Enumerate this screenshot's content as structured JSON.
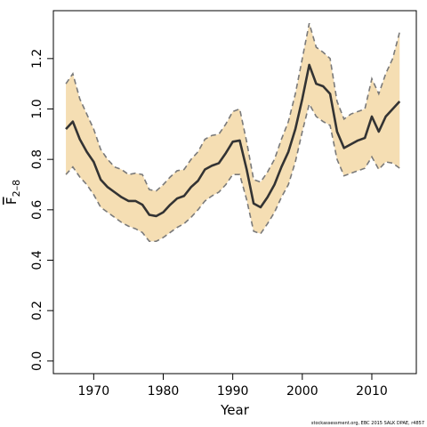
{
  "chart_data": {
    "type": "line",
    "title": "",
    "xlabel": "Year",
    "ylabel_main": "F",
    "ylabel_sub": "2–8",
    "xlim": [
      1964.2,
      2016.4
    ],
    "ylim": [
      -0.05,
      1.39
    ],
    "x_ticks": [
      1970,
      1980,
      1990,
      2000,
      2010
    ],
    "y_ticks": [
      0.0,
      0.2,
      0.4,
      0.6,
      0.8,
      1.0,
      1.2
    ],
    "band_color": "#f5deb3",
    "line_color": "#333333",
    "bound_color": "#7a7a7a",
    "x": [
      1966,
      1967,
      1968,
      1969,
      1970,
      1971,
      1972,
      1973,
      1974,
      1975,
      1976,
      1977,
      1978,
      1979,
      1980,
      1981,
      1982,
      1983,
      1984,
      1985,
      1986,
      1987,
      1988,
      1989,
      1990,
      1991,
      1992,
      1993,
      1994,
      1995,
      1996,
      1997,
      1998,
      1999,
      2000,
      2001,
      2002,
      2003,
      2004,
      2005,
      2006,
      2007,
      2008,
      2009,
      2010,
      2011,
      2012,
      2013,
      2014
    ],
    "series": [
      {
        "role": "estimate",
        "values": [
          0.92,
          0.95,
          0.88,
          0.83,
          0.79,
          0.72,
          0.69,
          0.67,
          0.65,
          0.635,
          0.635,
          0.62,
          0.58,
          0.575,
          0.59,
          0.62,
          0.645,
          0.655,
          0.69,
          0.715,
          0.76,
          0.775,
          0.785,
          0.825,
          0.87,
          0.875,
          0.76,
          0.625,
          0.61,
          0.65,
          0.7,
          0.77,
          0.83,
          0.92,
          1.04,
          1.175,
          1.1,
          1.09,
          1.06,
          0.91,
          0.845,
          0.86,
          0.875,
          0.885,
          0.97,
          0.91,
          0.97,
          1.0,
          1.03
        ]
      },
      {
        "role": "upper",
        "values": [
          1.1,
          1.14,
          1.04,
          0.98,
          0.92,
          0.84,
          0.8,
          0.77,
          0.76,
          0.74,
          0.745,
          0.74,
          0.68,
          0.675,
          0.7,
          0.73,
          0.755,
          0.76,
          0.8,
          0.83,
          0.88,
          0.895,
          0.9,
          0.94,
          0.99,
          1.0,
          0.87,
          0.72,
          0.71,
          0.75,
          0.8,
          0.88,
          0.95,
          1.06,
          1.2,
          1.34,
          1.245,
          1.225,
          1.2,
          1.03,
          0.96,
          0.98,
          0.99,
          1.0,
          1.12,
          1.06,
          1.14,
          1.2,
          1.305
        ]
      },
      {
        "role": "lower",
        "values": [
          0.74,
          0.77,
          0.73,
          0.7,
          0.66,
          0.61,
          0.59,
          0.57,
          0.55,
          0.535,
          0.525,
          0.51,
          0.475,
          0.475,
          0.49,
          0.51,
          0.53,
          0.545,
          0.57,
          0.6,
          0.635,
          0.655,
          0.67,
          0.7,
          0.74,
          0.74,
          0.64,
          0.515,
          0.505,
          0.545,
          0.59,
          0.65,
          0.7,
          0.79,
          0.91,
          1.02,
          0.97,
          0.95,
          0.935,
          0.8,
          0.735,
          0.745,
          0.755,
          0.765,
          0.81,
          0.76,
          0.79,
          0.785,
          0.765
        ]
      }
    ]
  },
  "footer_text": "stockassessment.org, EBC 2015 SALK DPAE, r4857"
}
